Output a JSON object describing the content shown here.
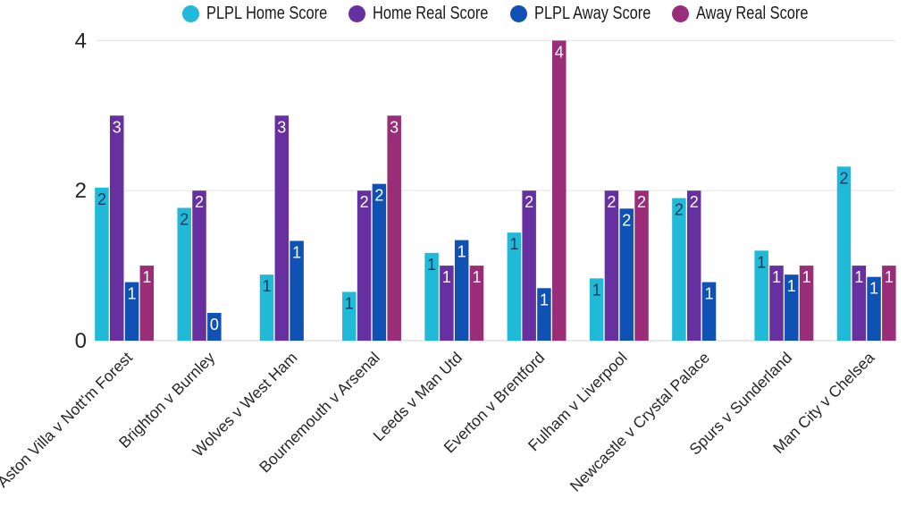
{
  "chart_data": {
    "type": "bar",
    "title": "",
    "xlabel": "",
    "ylabel": "",
    "categories": [
      "Aston Villa v Nott'm Forest",
      "Brighton v Burnley",
      "Wolves v West Ham",
      "Bournemouth v Arsenal",
      "Leeds v Man Utd",
      "Everton v Brentford",
      "Fulham v Liverpool",
      "Newcastle v Crystal Palace",
      "Spurs v Sunderland",
      "Man City v Chelsea"
    ],
    "series": [
      {
        "name": "PLPL Home Score",
        "color": "#21b9d8",
        "label_color": "#143a5c",
        "values": [
          2.04,
          1.77,
          0.88,
          0.65,
          1.17,
          1.44,
          0.83,
          1.9,
          1.2,
          2.32
        ],
        "labels": [
          "2",
          "2",
          "1",
          "1",
          "1",
          "1",
          "1",
          "2",
          "1",
          "2"
        ]
      },
      {
        "name": "Home Real Score",
        "color": "#6630a1",
        "label_color": "#ffffff",
        "values": [
          3,
          2,
          3,
          2,
          1,
          2,
          2,
          2,
          1,
          1
        ],
        "labels": [
          "3",
          "2",
          "3",
          "2",
          "1",
          "2",
          "2",
          "2",
          "1",
          "1"
        ]
      },
      {
        "name": "PLPL Away Score",
        "color": "#0f52b4",
        "label_color": "#ffffff",
        "values": [
          0.78,
          0.37,
          1.33,
          2.09,
          1.34,
          0.7,
          1.76,
          0.78,
          0.88,
          0.85
        ],
        "labels": [
          "1",
          "0",
          "1",
          "2",
          "1",
          "1",
          "2",
          "1",
          "1",
          "1"
        ]
      },
      {
        "name": "Away Real Score",
        "color": "#9a2d78",
        "label_color": "#ffffff",
        "values": [
          1,
          0,
          0,
          3,
          1,
          4,
          2,
          0,
          1,
          1
        ],
        "labels": [
          "1",
          null,
          null,
          "3",
          "1",
          "4",
          "2",
          null,
          "1",
          "1"
        ]
      }
    ],
    "yticks": [
      0,
      2,
      4
    ],
    "ylim": [
      0,
      4
    ],
    "grid": true,
    "legend_position": "top",
    "colors": {
      "gridline": "#e7e7e7",
      "zeroline": "#dcdcdc",
      "tick_label": "#262626",
      "category_label": "#262626",
      "background": "#ffffff"
    }
  }
}
